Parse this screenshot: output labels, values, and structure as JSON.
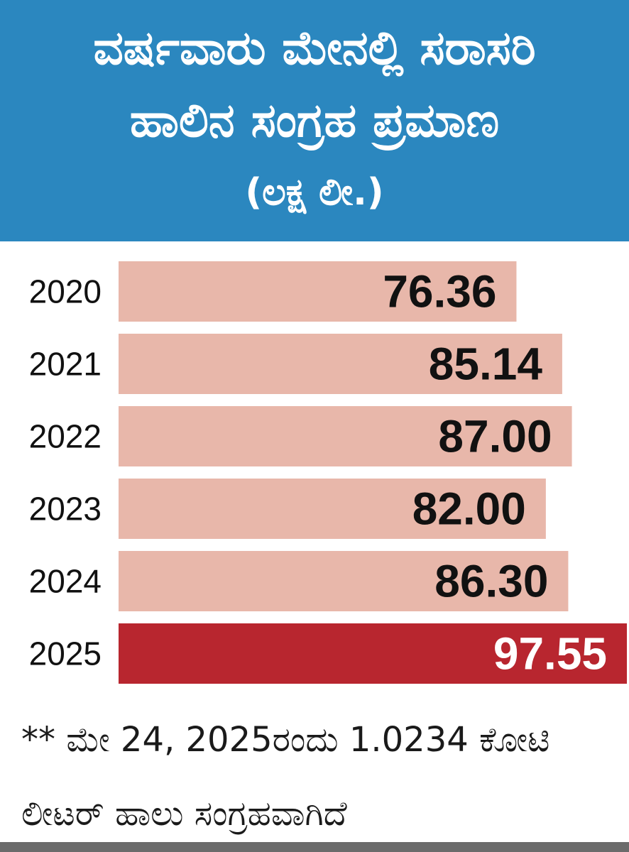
{
  "header": {
    "title_line1": "ವರ್ಷವಾರು ಮೇನಲ್ಲಿ ಸರಾಸರಿ",
    "title_line2": "ಹಾಲಿನ ಸಂಗ್ರಹ ಪ್ರಮಾಣ",
    "unit": "(ಲಕ್ಷ ಲೀ.)"
  },
  "colors": {
    "header_bg": "#2b87bf",
    "bar": "#e8b7aa",
    "bar_highlight": "#b8262f"
  },
  "chart_data": {
    "type": "bar",
    "orientation": "horizontal",
    "categories": [
      "2020",
      "2021",
      "2022",
      "2023",
      "2024",
      "2025"
    ],
    "values": [
      76.36,
      85.14,
      87.0,
      82.0,
      86.3,
      97.55
    ],
    "value_labels": [
      "76.36",
      "85.14",
      "87.00",
      "82.00",
      "86.30",
      "97.55"
    ],
    "highlight": "2025",
    "grid": false
  },
  "footnote": {
    "line1": "** ಮೇ 24, 2025ರಂದು 1.0234 ಕೋಟಿ",
    "line2": "ಲೀಟರ್ ಹಾಲು ಸಂಗ್ರಹವಾಗಿದೆ"
  }
}
